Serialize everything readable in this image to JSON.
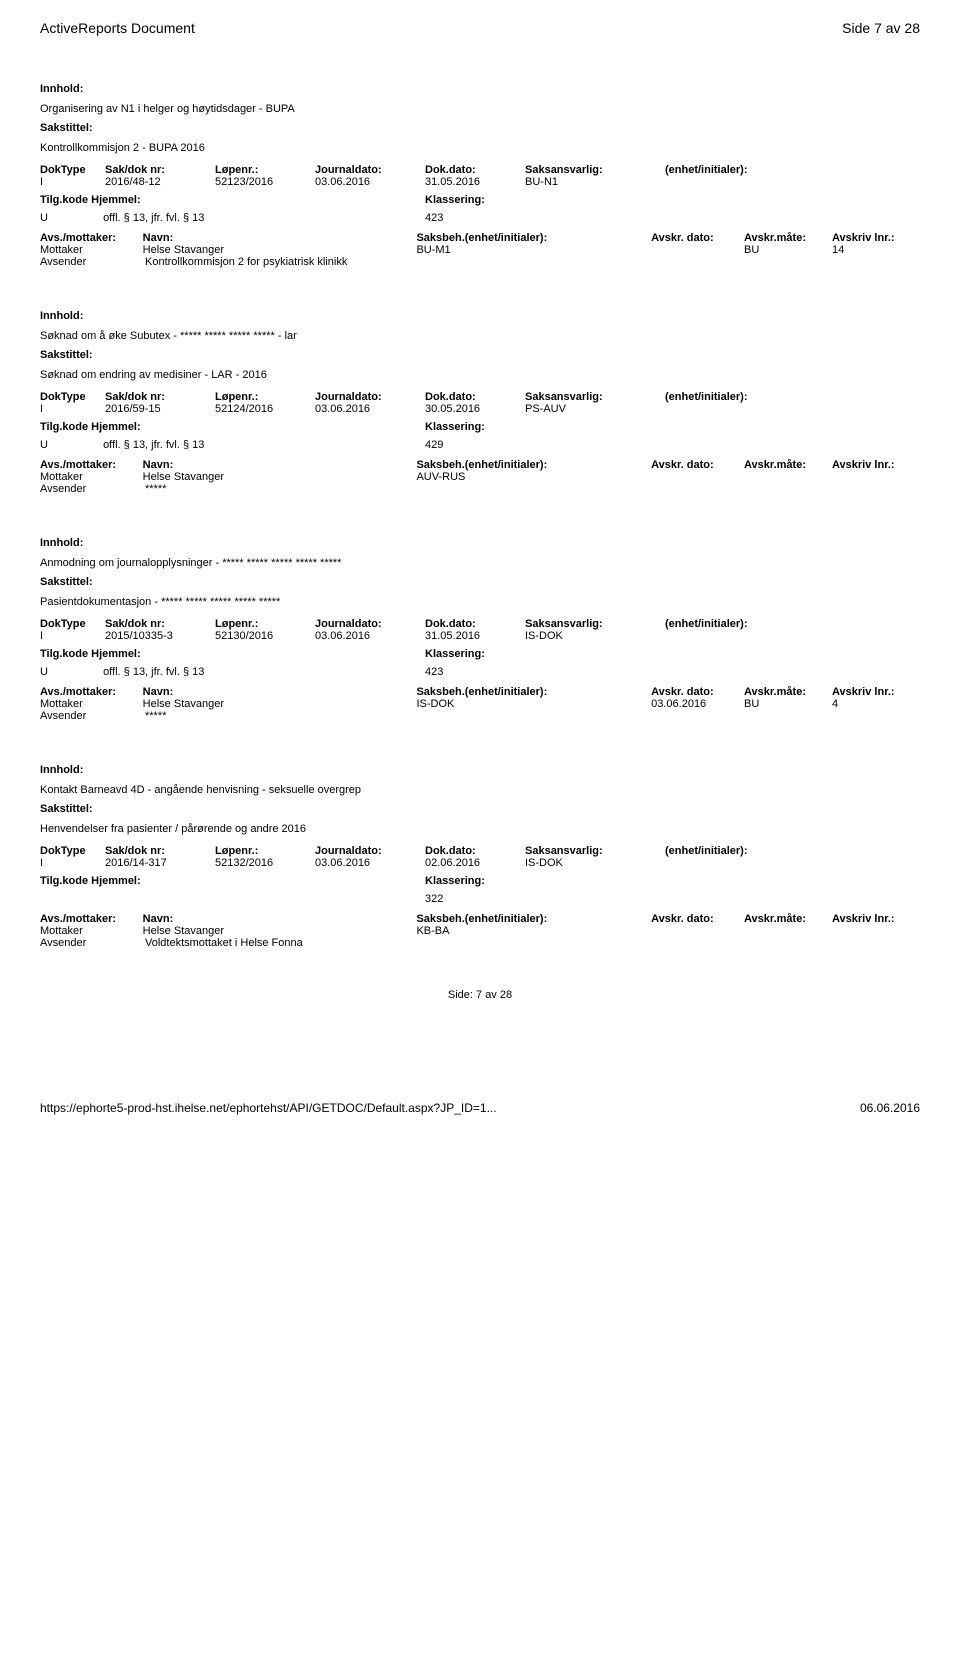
{
  "header": {
    "title": "ActiveReports Document",
    "page": "Side 7 av 28"
  },
  "records": [
    {
      "innhold_label": "Innhold:",
      "innhold": "Organisering av N1 i helger og høytidsdager - BUPA",
      "sakstittel_label": "Sakstittel:",
      "sakstittel": "Kontrollkommisjon 2 - BUPA 2016",
      "header_labels": {
        "doktype": "DokType",
        "sakdok": "Sak/dok nr:",
        "lopenr": "Løpenr.:",
        "journal": "Journaldato:",
        "dokdato": "Dok.dato:",
        "saksans": "Saksansvarlig:",
        "enhet": "(enhet/initialer):"
      },
      "doktype": "I",
      "sakdok": "2016/48-12",
      "lopenr": "52123/2016",
      "journal": "03.06.2016",
      "dokdato": "31.05.2016",
      "saksans": "BU-N1",
      "tilg_label": "Tilg.kode Hjemmel:",
      "tilg_u": "U",
      "tilg_offl": "offl. § 13, jfr. fvl. § 13",
      "klass_label": "Klassering:",
      "klass": "423",
      "avs_header": {
        "avs": "Avs./mottaker:",
        "navn": "Navn:",
        "saksbeh": "Saksbeh.(enhet/initialer):",
        "dato": "Avskr. dato:",
        "mate": "Avskr.måte:",
        "lnr": "Avskriv lnr.:"
      },
      "mottaker_label": "Mottaker",
      "mottaker_navn": "Helse Stavanger",
      "mottaker_saksbeh": "BU-M1",
      "mottaker_dato": "",
      "mottaker_mate": "BU",
      "mottaker_lnr": "14",
      "avsender_label": "Avsender",
      "avsender_navn": "Kontrollkommisjon 2 for psykiatrisk klinikk"
    },
    {
      "innhold_label": "Innhold:",
      "innhold": "Søknad om å øke Subutex - ***** ***** ***** ***** - lar",
      "sakstittel_label": "Sakstittel:",
      "sakstittel": "Søknad om endring av medisiner - LAR - 2016",
      "header_labels": {
        "doktype": "DokType",
        "sakdok": "Sak/dok nr:",
        "lopenr": "Løpenr.:",
        "journal": "Journaldato:",
        "dokdato": "Dok.dato:",
        "saksans": "Saksansvarlig:",
        "enhet": "(enhet/initialer):"
      },
      "doktype": "I",
      "sakdok": "2016/59-15",
      "lopenr": "52124/2016",
      "journal": "03.06.2016",
      "dokdato": "30.05.2016",
      "saksans": "PS-AUV",
      "tilg_label": "Tilg.kode Hjemmel:",
      "tilg_u": "U",
      "tilg_offl": "offl. § 13, jfr. fvl. § 13",
      "klass_label": "Klassering:",
      "klass": "429",
      "avs_header": {
        "avs": "Avs./mottaker:",
        "navn": "Navn:",
        "saksbeh": "Saksbeh.(enhet/initialer):",
        "dato": "Avskr. dato:",
        "mate": "Avskr.måte:",
        "lnr": "Avskriv lnr.:"
      },
      "mottaker_label": "Mottaker",
      "mottaker_navn": "Helse Stavanger",
      "mottaker_saksbeh": "AUV-RUS",
      "mottaker_dato": "",
      "mottaker_mate": "",
      "mottaker_lnr": "",
      "avsender_label": "Avsender",
      "avsender_navn": "*****"
    },
    {
      "innhold_label": "Innhold:",
      "innhold": "Anmodning om journalopplysninger - ***** ***** ***** ***** *****",
      "sakstittel_label": "Sakstittel:",
      "sakstittel": "Pasientdokumentasjon - ***** ***** ***** ***** *****",
      "header_labels": {
        "doktype": "DokType",
        "sakdok": "Sak/dok nr:",
        "lopenr": "Løpenr.:",
        "journal": "Journaldato:",
        "dokdato": "Dok.dato:",
        "saksans": "Saksansvarlig:",
        "enhet": "(enhet/initialer):"
      },
      "doktype": "I",
      "sakdok": "2015/10335-3",
      "lopenr": "52130/2016",
      "journal": "03.06.2016",
      "dokdato": "31.05.2016",
      "saksans": "IS-DOK",
      "tilg_label": "Tilg.kode Hjemmel:",
      "tilg_u": "U",
      "tilg_offl": "offl. § 13, jfr. fvl. § 13",
      "klass_label": "Klassering:",
      "klass": "423",
      "avs_header": {
        "avs": "Avs./mottaker:",
        "navn": "Navn:",
        "saksbeh": "Saksbeh.(enhet/initialer):",
        "dato": "Avskr. dato:",
        "mate": "Avskr.måte:",
        "lnr": "Avskriv lnr.:"
      },
      "mottaker_label": "Mottaker",
      "mottaker_navn": "Helse Stavanger",
      "mottaker_saksbeh": "IS-DOK",
      "mottaker_dato": "03.06.2016",
      "mottaker_mate": "BU",
      "mottaker_lnr": "4",
      "avsender_label": "Avsender",
      "avsender_navn": "*****"
    },
    {
      "innhold_label": "Innhold:",
      "innhold": "Kontakt Barneavd 4D - angående henvisning - seksuelle overgrep",
      "sakstittel_label": "Sakstittel:",
      "sakstittel": "Henvendelser fra pasienter / pårørende og andre 2016",
      "header_labels": {
        "doktype": "DokType",
        "sakdok": "Sak/dok nr:",
        "lopenr": "Løpenr.:",
        "journal": "Journaldato:",
        "dokdato": "Dok.dato:",
        "saksans": "Saksansvarlig:",
        "enhet": "(enhet/initialer):"
      },
      "doktype": "I",
      "sakdok": "2016/14-317",
      "lopenr": "52132/2016",
      "journal": "03.06.2016",
      "dokdato": "02.06.2016",
      "saksans": "IS-DOK",
      "tilg_label": "Tilg.kode Hjemmel:",
      "tilg_u": "",
      "tilg_offl": "",
      "klass_label": "Klassering:",
      "klass": "322",
      "avs_header": {
        "avs": "Avs./mottaker:",
        "navn": "Navn:",
        "saksbeh": "Saksbeh.(enhet/initialer):",
        "dato": "Avskr. dato:",
        "mate": "Avskr.måte:",
        "lnr": "Avskriv lnr.:"
      },
      "mottaker_label": "Mottaker",
      "mottaker_navn": "Helse Stavanger",
      "mottaker_saksbeh": "KB-BA",
      "mottaker_dato": "",
      "mottaker_mate": "",
      "mottaker_lnr": "",
      "avsender_label": "Avsender",
      "avsender_navn": "Voldtektsmottaket i Helse Fonna"
    }
  ],
  "footer": {
    "side": "Side:  7  av  28"
  },
  "bottom": {
    "url": "https://ephorte5-prod-hst.ihelse.net/ephortehst/API/GETDOC/Default.aspx?JP_ID=1...",
    "date": "06.06.2016"
  }
}
